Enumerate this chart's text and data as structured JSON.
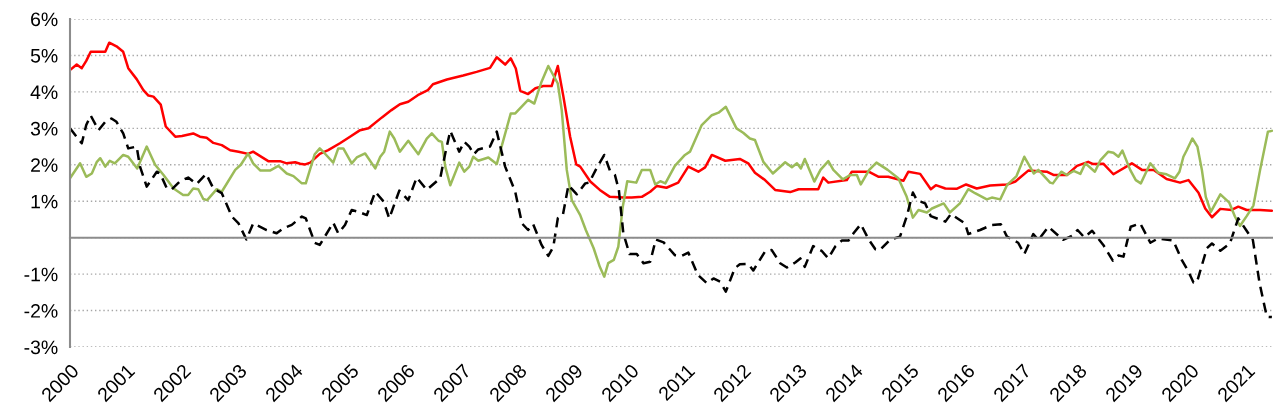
{
  "chart_data": {
    "type": "line",
    "xlim": [
      2000,
      2021.48
    ],
    "xticks": [
      2000,
      2001,
      2002,
      2003,
      2004,
      2005,
      2006,
      2007,
      2008,
      2009,
      2010,
      2011,
      2012,
      2013,
      2014,
      2015,
      2016,
      2017,
      2018,
      2019,
      2020,
      2021
    ],
    "ylim": [
      -3,
      6
    ],
    "yticks": [
      {
        "value": -3,
        "label": "-3%"
      },
      {
        "value": -2,
        "label": "-2%"
      },
      {
        "value": -1,
        "label": "-1%"
      },
      {
        "value": 0,
        "label": null
      },
      {
        "value": 1,
        "label": "1%"
      },
      {
        "value": 2,
        "label": "2%"
      },
      {
        "value": 3,
        "label": "3%"
      },
      {
        "value": 4,
        "label": "4%"
      },
      {
        "value": 5,
        "label": "5%"
      },
      {
        "value": 6,
        "label": "6%"
      }
    ],
    "grid": "y",
    "marker": "none",
    "series": [
      {
        "color": "#ff0000",
        "line_style": "solid",
        "x": [
          2000.0,
          2000.12,
          2000.21,
          2000.29,
          2000.37,
          2000.48,
          2000.63,
          2000.7,
          2000.83,
          2000.95,
          2001.04,
          2001.19,
          2001.31,
          2001.4,
          2001.49,
          2001.62,
          2001.71,
          2001.88,
          2002.0,
          2002.2,
          2002.32,
          2002.44,
          2002.56,
          2002.71,
          2002.86,
          2003.01,
          2003.18,
          2003.27,
          2003.54,
          2003.75,
          2003.87,
          2004.02,
          2004.11,
          2004.2,
          2004.29,
          2004.46,
          2004.61,
          2004.82,
          2005.0,
          2005.18,
          2005.33,
          2005.57,
          2005.74,
          2005.89,
          2006.04,
          2006.21,
          2006.39,
          2006.48,
          2006.73,
          2007.02,
          2007.26,
          2007.5,
          2007.62,
          2007.77,
          2007.87,
          2007.96,
          2008.04,
          2008.18,
          2008.31,
          2008.45,
          2008.6,
          2008.71,
          2008.81,
          2008.93,
          2009.04,
          2009.11,
          2009.29,
          2009.46,
          2009.64,
          2009.88,
          2010.03,
          2010.21,
          2010.36,
          2010.48,
          2010.65,
          2010.86,
          2011.04,
          2011.22,
          2011.34,
          2011.46,
          2011.7,
          2011.96,
          2012.11,
          2012.23,
          2012.41,
          2012.59,
          2012.86,
          2013.01,
          2013.36,
          2013.45,
          2013.54,
          2013.87,
          2013.96,
          2014.26,
          2014.44,
          2014.61,
          2014.88,
          2014.97,
          2015.18,
          2015.37,
          2015.46,
          2015.63,
          2015.83,
          2016.0,
          2016.19,
          2016.43,
          2016.73,
          2016.88,
          2017.11,
          2017.44,
          2017.56,
          2017.8,
          2017.98,
          2018.18,
          2018.27,
          2018.45,
          2018.63,
          2018.96,
          2019.14,
          2019.35,
          2019.58,
          2019.82,
          2019.97,
          2020.15,
          2020.27,
          2020.39,
          2020.54,
          2020.74,
          2020.86,
          2021.01,
          2021.25,
          2021.46
        ],
        "values": [
          4.6,
          4.75,
          4.65,
          4.85,
          5.1,
          5.1,
          5.1,
          5.35,
          5.25,
          5.1,
          4.65,
          4.35,
          4.05,
          3.9,
          3.87,
          3.65,
          3.05,
          2.77,
          2.79,
          2.86,
          2.77,
          2.74,
          2.6,
          2.54,
          2.4,
          2.36,
          2.3,
          2.36,
          2.1,
          2.1,
          2.04,
          2.07,
          2.03,
          2.01,
          2.06,
          2.3,
          2.4,
          2.59,
          2.77,
          2.95,
          3.0,
          3.3,
          3.5,
          3.66,
          3.73,
          3.91,
          4.05,
          4.21,
          4.34,
          4.45,
          4.55,
          4.66,
          4.95,
          4.75,
          4.92,
          4.64,
          4.03,
          3.94,
          4.1,
          4.16,
          4.16,
          4.71,
          3.87,
          2.77,
          2.01,
          1.95,
          1.54,
          1.31,
          1.12,
          1.1,
          1.1,
          1.12,
          1.26,
          1.42,
          1.37,
          1.51,
          1.95,
          1.81,
          1.93,
          2.27,
          2.11,
          2.16,
          2.04,
          1.78,
          1.58,
          1.31,
          1.25,
          1.33,
          1.33,
          1.65,
          1.51,
          1.58,
          1.81,
          1.81,
          1.67,
          1.67,
          1.56,
          1.81,
          1.75,
          1.33,
          1.44,
          1.35,
          1.34,
          1.46,
          1.35,
          1.43,
          1.46,
          1.54,
          1.84,
          1.81,
          1.72,
          1.72,
          1.97,
          2.08,
          2.02,
          2.03,
          1.74,
          2.04,
          1.86,
          1.86,
          1.61,
          1.51,
          1.58,
          1.23,
          0.8,
          0.56,
          0.79,
          0.76,
          0.85,
          0.76,
          0.76,
          0.74
        ]
      },
      {
        "color": "#9bbb59",
        "line_style": "solid",
        "x": [
          2000.0,
          2000.18,
          2000.29,
          2000.39,
          2000.48,
          2000.54,
          2000.63,
          2000.71,
          2000.8,
          2000.95,
          2001.04,
          2001.2,
          2001.37,
          2001.52,
          2001.67,
          2001.85,
          2002.02,
          2002.11,
          2002.2,
          2002.29,
          2002.38,
          2002.45,
          2002.62,
          2002.71,
          2002.95,
          2003.05,
          2003.18,
          2003.27,
          2003.4,
          2003.57,
          2003.72,
          2003.87,
          2003.99,
          2004.14,
          2004.21,
          2004.37,
          2004.46,
          2004.55,
          2004.7,
          2004.79,
          2004.88,
          2005.03,
          2005.12,
          2005.27,
          2005.45,
          2005.54,
          2005.61,
          2005.71,
          2005.79,
          2005.89,
          2006.04,
          2006.22,
          2006.37,
          2006.46,
          2006.58,
          2006.64,
          2006.7,
          2006.79,
          2006.95,
          2007.04,
          2007.13,
          2007.2,
          2007.29,
          2007.47,
          2007.62,
          2007.87,
          2007.95,
          2008.18,
          2008.29,
          2008.42,
          2008.54,
          2008.71,
          2008.78,
          2008.87,
          2008.96,
          2009.11,
          2009.21,
          2009.35,
          2009.46,
          2009.54,
          2009.61,
          2009.71,
          2009.79,
          2009.87,
          2009.95,
          2010.11,
          2010.21,
          2010.36,
          2010.45,
          2010.54,
          2010.63,
          2010.8,
          2010.98,
          2011.07,
          2011.28,
          2011.46,
          2011.58,
          2011.71,
          2011.9,
          2012.02,
          2012.14,
          2012.23,
          2012.38,
          2012.55,
          2012.77,
          2012.89,
          2012.98,
          2013.05,
          2013.12,
          2013.29,
          2013.4,
          2013.54,
          2013.63,
          2013.8,
          2013.93,
          2014.05,
          2014.12,
          2014.27,
          2014.4,
          2014.6,
          2014.79,
          2014.94,
          2015.05,
          2015.15,
          2015.3,
          2015.39,
          2015.6,
          2015.71,
          2015.89,
          2016.04,
          2016.16,
          2016.37,
          2016.46,
          2016.61,
          2016.73,
          2016.9,
          2017.04,
          2017.21,
          2017.29,
          2017.5,
          2017.55,
          2017.7,
          2017.8,
          2017.92,
          2018.04,
          2018.13,
          2018.3,
          2018.4,
          2018.54,
          2018.63,
          2018.72,
          2018.79,
          2018.93,
          2019.03,
          2019.12,
          2019.29,
          2019.43,
          2019.58,
          2019.73,
          2019.81,
          2019.88,
          2019.94,
          2020.04,
          2020.13,
          2020.21,
          2020.28,
          2020.37,
          2020.54,
          2020.7,
          2020.8,
          2020.89,
          2021.01,
          2021.13,
          2021.25,
          2021.39,
          2021.46
        ],
        "values": [
          1.63,
          2.04,
          1.67,
          1.76,
          2.08,
          2.18,
          1.95,
          2.11,
          2.04,
          2.27,
          2.22,
          1.9,
          2.5,
          2.0,
          1.72,
          1.35,
          1.17,
          1.17,
          1.35,
          1.33,
          1.06,
          1.03,
          1.33,
          1.26,
          1.86,
          2.0,
          2.31,
          2.04,
          1.84,
          1.84,
          1.97,
          1.76,
          1.69,
          1.49,
          1.49,
          2.29,
          2.45,
          2.31,
          2.06,
          2.45,
          2.45,
          2.04,
          2.2,
          2.31,
          1.9,
          2.22,
          2.36,
          2.91,
          2.72,
          2.36,
          2.66,
          2.29,
          2.72,
          2.86,
          2.66,
          2.63,
          1.95,
          1.44,
          2.06,
          1.81,
          1.95,
          2.22,
          2.11,
          2.2,
          2.02,
          3.41,
          3.41,
          3.78,
          3.68,
          4.28,
          4.71,
          4.23,
          3.5,
          1.86,
          1.03,
          0.62,
          0.21,
          -0.29,
          -0.8,
          -1.07,
          -0.7,
          -0.61,
          -0.25,
          0.85,
          1.55,
          1.51,
          1.86,
          1.86,
          1.46,
          1.55,
          1.49,
          1.97,
          2.27,
          2.36,
          3.09,
          3.36,
          3.43,
          3.59,
          3.0,
          2.88,
          2.72,
          2.68,
          2.08,
          1.76,
          2.07,
          1.93,
          2.04,
          1.9,
          2.16,
          1.54,
          1.86,
          2.1,
          1.86,
          1.6,
          1.72,
          1.72,
          1.46,
          1.86,
          2.06,
          1.86,
          1.63,
          1.12,
          0.55,
          0.76,
          0.69,
          0.8,
          0.94,
          0.69,
          0.94,
          1.33,
          1.22,
          1.05,
          1.1,
          1.05,
          1.44,
          1.69,
          2.22,
          1.76,
          1.86,
          1.51,
          1.49,
          1.81,
          1.72,
          1.83,
          1.75,
          2.04,
          1.81,
          2.13,
          2.36,
          2.33,
          2.22,
          2.39,
          1.86,
          1.58,
          1.49,
          2.04,
          1.78,
          1.74,
          1.63,
          1.81,
          2.22,
          2.4,
          2.72,
          2.5,
          1.86,
          1.12,
          0.71,
          1.19,
          0.96,
          0.58,
          0.32,
          0.59,
          0.88,
          1.86,
          2.91,
          2.93
        ]
      },
      {
        "color": "#000000",
        "line_style": "dashed",
        "x": [
          2000.0,
          2000.21,
          2000.29,
          2000.37,
          2000.51,
          2000.63,
          2000.74,
          2000.83,
          2000.95,
          2001.04,
          2001.19,
          2001.25,
          2001.37,
          2001.55,
          2001.61,
          2001.73,
          2001.82,
          2001.96,
          2002.11,
          2002.26,
          2002.43,
          2002.56,
          2002.71,
          2002.89,
          2003.01,
          2003.15,
          2003.27,
          2003.51,
          2003.69,
          2003.81,
          2003.96,
          2004.14,
          2004.21,
          2004.37,
          2004.46,
          2004.7,
          2004.79,
          2004.91,
          2005.03,
          2005.15,
          2005.3,
          2005.45,
          2005.6,
          2005.7,
          2005.88,
          2006.04,
          2006.19,
          2006.37,
          2006.61,
          2006.7,
          2006.79,
          2006.95,
          2007.04,
          2007.13,
          2007.21,
          2007.29,
          2007.5,
          2007.62,
          2007.77,
          2007.95,
          2008.07,
          2008.18,
          2008.27,
          2008.42,
          2008.54,
          2008.63,
          2008.71,
          2008.8,
          2008.9,
          2009.05,
          2009.2,
          2009.27,
          2009.4,
          2009.54,
          2009.64,
          2009.73,
          2009.8,
          2009.88,
          2009.99,
          2010.12,
          2010.24,
          2010.36,
          2010.46,
          2010.6,
          2010.8,
          2010.92,
          2011.04,
          2011.21,
          2011.37,
          2011.49,
          2011.61,
          2011.71,
          2011.87,
          2011.96,
          2012.11,
          2012.2,
          2012.41,
          2012.53,
          2012.68,
          2012.8,
          2012.95,
          2013.04,
          2013.12,
          2013.27,
          2013.42,
          2013.54,
          2013.66,
          2013.78,
          2013.9,
          2013.99,
          2014.12,
          2014.26,
          2014.38,
          2014.46,
          2014.64,
          2014.82,
          2014.94,
          2015.05,
          2015.12,
          2015.27,
          2015.37,
          2015.63,
          2015.73,
          2015.98,
          2016.04,
          2016.25,
          2016.46,
          2016.62,
          2016.73,
          2016.93,
          2017.04,
          2017.2,
          2017.29,
          2017.47,
          2017.73,
          2017.89,
          2017.99,
          2018.11,
          2018.25,
          2018.45,
          2018.62,
          2018.72,
          2018.81,
          2018.94,
          2019.11,
          2019.29,
          2019.43,
          2019.7,
          2019.85,
          2019.97,
          2020.06,
          2020.12,
          2020.3,
          2020.39,
          2020.54,
          2020.71,
          2020.86,
          2021.0,
          2021.12,
          2021.24,
          2021.37,
          2021.46
        ],
        "values": [
          3.0,
          2.59,
          3.09,
          3.35,
          2.95,
          3.18,
          3.27,
          3.18,
          2.86,
          2.45,
          2.5,
          1.95,
          1.4,
          1.81,
          1.76,
          1.35,
          1.33,
          1.54,
          1.65,
          1.47,
          1.75,
          1.35,
          1.22,
          0.58,
          0.39,
          -0.05,
          0.39,
          0.21,
          0.12,
          0.26,
          0.35,
          0.58,
          0.53,
          -0.14,
          -0.2,
          0.41,
          0.12,
          0.35,
          0.76,
          0.71,
          0.62,
          1.26,
          0.99,
          0.53,
          1.29,
          1.03,
          1.65,
          1.31,
          1.63,
          2.31,
          2.93,
          2.36,
          2.63,
          2.5,
          2.29,
          2.42,
          2.5,
          2.91,
          1.95,
          1.26,
          0.39,
          0.21,
          0.37,
          -0.2,
          -0.5,
          -0.25,
          0.53,
          0.62,
          1.44,
          1.19,
          1.49,
          1.51,
          1.9,
          2.27,
          1.84,
          1.72,
          1.31,
          0.12,
          -0.45,
          -0.45,
          -0.7,
          -0.66,
          -0.05,
          -0.13,
          -0.48,
          -0.5,
          -0.41,
          -1.02,
          -1.25,
          -1.12,
          -1.21,
          -1.48,
          -0.84,
          -0.73,
          -0.72,
          -0.9,
          -0.38,
          -0.34,
          -0.7,
          -0.82,
          -0.68,
          -0.57,
          -0.8,
          -0.23,
          -0.36,
          -0.57,
          -0.25,
          -0.08,
          -0.08,
          0.12,
          0.37,
          -0.05,
          -0.32,
          -0.34,
          -0.06,
          0.03,
          0.58,
          1.24,
          1.03,
          0.94,
          0.59,
          0.44,
          0.65,
          0.39,
          0.1,
          0.21,
          0.35,
          0.37,
          0.03,
          -0.14,
          -0.45,
          0.1,
          -0.06,
          0.3,
          -0.06,
          0.05,
          0.21,
          0.01,
          0.19,
          -0.2,
          -0.63,
          -0.49,
          -0.52,
          0.3,
          0.39,
          -0.14,
          -0.02,
          -0.08,
          -0.61,
          -0.93,
          -1.23,
          -1.23,
          -0.29,
          -0.16,
          -0.36,
          -0.16,
          0.53,
          0.21,
          -0.06,
          -1.25,
          -2.17,
          -2.18
        ]
      }
    ]
  }
}
